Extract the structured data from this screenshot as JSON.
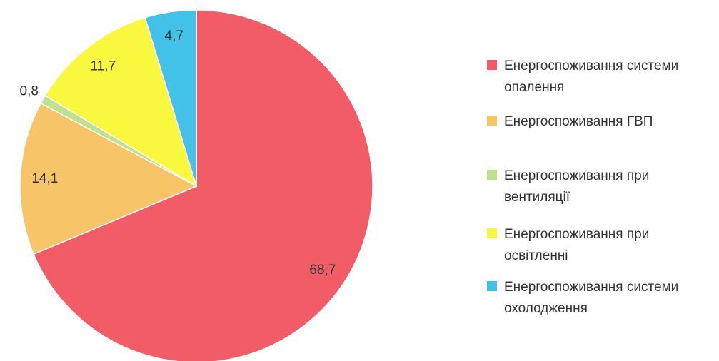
{
  "chart_data": {
    "type": "pie",
    "series": [
      {
        "name": "Енергоспоживання системи опалення",
        "color": "#f25c66",
        "values": [
          68.7
        ],
        "value_labels": [
          "68,7"
        ]
      },
      {
        "name": "Енергоспоживання ГВП",
        "color": "#f8c468",
        "values": [
          14.1
        ],
        "value_labels": [
          "14,1"
        ]
      },
      {
        "name": "Енергоспоживання при вентиляції",
        "color": "#bde091",
        "values": [
          0.8
        ],
        "value_labels": [
          "0,8"
        ]
      },
      {
        "name": "Енергоспоживання при освітленні",
        "color": "#f9f73e",
        "values": [
          11.7
        ],
        "value_labels": [
          "11,7"
        ]
      },
      {
        "name": "Енергоспоживання системи охолодження",
        "color": "#42c1e9",
        "values": [
          4.7
        ],
        "value_labels": [
          "4,7"
        ]
      }
    ],
    "legend": "right"
  }
}
